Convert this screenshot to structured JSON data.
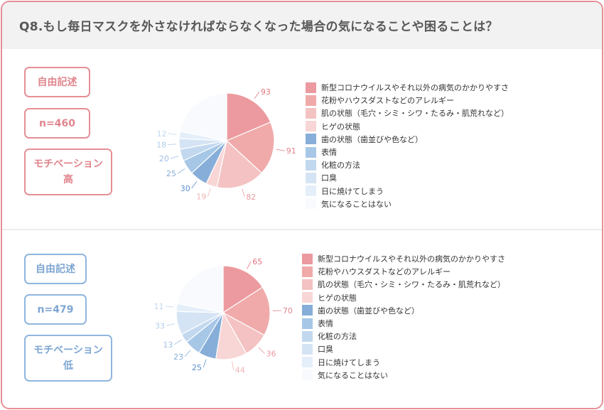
{
  "title": "Q8.もし毎日マスクを外さなければならなくなった場合の気になることや困ることは？",
  "chart_data": [
    {
      "type": "pie",
      "tags": [
        "自由記述",
        "n=460",
        "モチベーション\n高"
      ],
      "categories": [
        "新型コロナウイルスやそれ以外の病気のかかりやすさ",
        "花粉やハウスダストなどのアレルギー",
        "肌の状態（毛穴・シミ・シワ・たるみ・肌荒れなど）",
        "ヒゲの状態",
        "歯の状態（歯並びや色など）",
        "表情",
        "化粧の方法",
        "口臭",
        "日に焼けてしまう",
        "気になることはない"
      ],
      "values": [
        93,
        91,
        82,
        19,
        30,
        25,
        20,
        18,
        12,
        null
      ],
      "value_labels": [
        "93",
        "91",
        "82",
        "19",
        "30",
        "25",
        "20",
        "18",
        "12",
        ""
      ],
      "colors": [
        "#ec9a9f",
        "#f0aaaa",
        "#f4c2c2",
        "#f8d6d6",
        "#86aed8",
        "#a7c7e7",
        "#c2d8ef",
        "#d5e4f4",
        "#e4effa",
        "#f8fafd"
      ],
      "label_colors": [
        "#e0757c",
        "#e0858d",
        "#ea9a9e",
        "#f0b4b4",
        "#5a8fcc",
        "#86aed8",
        "#9ebfe3",
        "#b3cde9",
        "#c2d8ef",
        "#ffffff"
      ]
    },
    {
      "type": "pie",
      "tags": [
        "自由記述",
        "n=479",
        "モチベーション\n低"
      ],
      "categories": [
        "新型コロナウイルスやそれ以外の病気のかかりやすさ",
        "花粉やハウスダストなどのアレルギー",
        "肌の状態（毛穴・シミ・シワ・たるみ・肌荒れなど）",
        "ヒゲの状態",
        "歯の状態（歯並びや色など）",
        "表情",
        "化粧の方法",
        "口臭",
        "日に焼けてしまう",
        "気になることはない"
      ],
      "values": [
        65,
        70,
        36,
        44,
        25,
        23,
        13,
        33,
        11,
        null
      ],
      "value_labels": [
        "65",
        "70",
        "36",
        "44",
        "25",
        "23",
        "13",
        "33",
        "11",
        ""
      ],
      "colors": [
        "#ec9a9f",
        "#f0aaaa",
        "#f4c2c2",
        "#f8d6d6",
        "#86aed8",
        "#a7c7e7",
        "#c2d8ef",
        "#d5e4f4",
        "#e4effa",
        "#f8fafd"
      ],
      "label_colors": [
        "#e0757c",
        "#e0858d",
        "#ea9a9e",
        "#f0b4b4",
        "#5a8fcc",
        "#86aed8",
        "#9ebfe3",
        "#b3cde9",
        "#c2d8ef",
        "#ffffff"
      ]
    }
  ]
}
